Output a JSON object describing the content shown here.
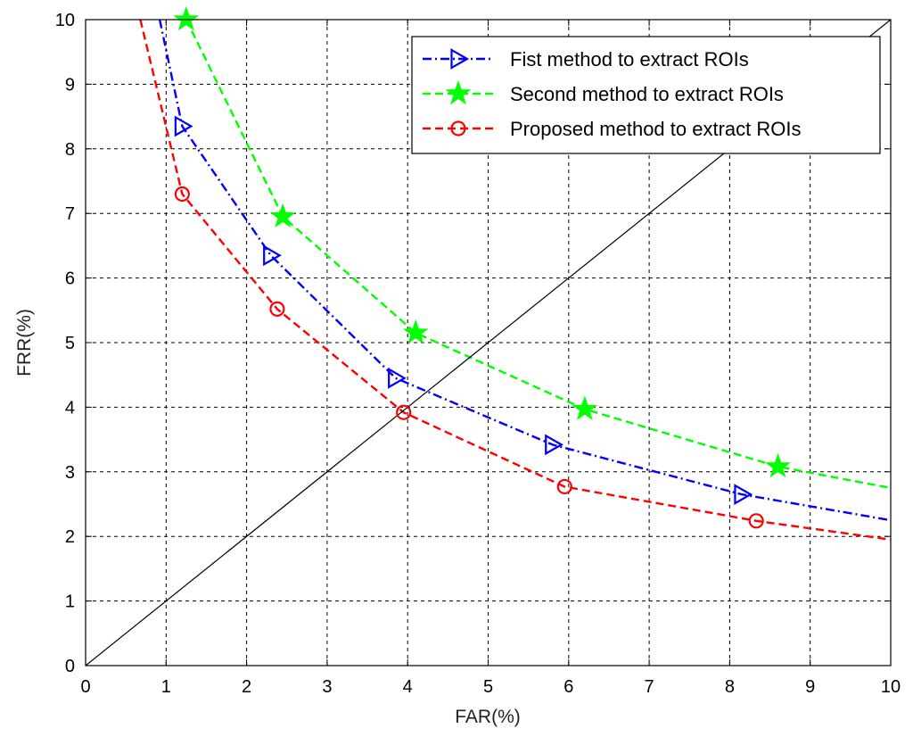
{
  "chart_data": {
    "type": "line",
    "xlabel": "FAR(%)",
    "ylabel": "FRR(%)",
    "xlim": [
      0,
      10
    ],
    "ylim": [
      0,
      10
    ],
    "xticks": [
      "0",
      "1",
      "2",
      "3",
      "4",
      "5",
      "6",
      "7",
      "8",
      "9",
      "10"
    ],
    "yticks": [
      "0",
      "1",
      "2",
      "3",
      "4",
      "5",
      "6",
      "7",
      "8",
      "9",
      "10"
    ],
    "grid": true,
    "legend_position": "top-right",
    "series": [
      {
        "name": "Fist method to extract ROIs",
        "color": "#0000ff",
        "line_style": "dash-dot",
        "marker": "triangle-right",
        "x": [
          0.92,
          1.2,
          2.3,
          3.85,
          5.8,
          8.15,
          10
        ],
        "y": [
          10,
          8.35,
          6.35,
          4.45,
          3.42,
          2.65,
          2.25
        ],
        "marker_indices": [
          1,
          2,
          3,
          4,
          5
        ]
      },
      {
        "name": "Second method to extract ROIs",
        "color": "#00ff00",
        "line_style": "dashed",
        "marker": "star",
        "x": [
          1.25,
          2.45,
          4.1,
          6.2,
          8.6,
          10
        ],
        "y": [
          10,
          6.95,
          5.15,
          3.97,
          3.08,
          2.75
        ],
        "marker_indices": [
          0,
          1,
          2,
          3,
          4
        ]
      },
      {
        "name": "Proposed method to extract ROIs",
        "color": "#ff0000",
        "line_style": "dashed",
        "marker": "circle",
        "x": [
          0.68,
          1.2,
          2.38,
          3.95,
          5.95,
          8.33,
          10
        ],
        "y": [
          10,
          7.3,
          5.52,
          3.92,
          2.77,
          2.24,
          1.95
        ],
        "marker_indices": [
          1,
          2,
          3,
          4,
          5
        ]
      },
      {
        "name": "",
        "color": "#000000",
        "line_style": "solid",
        "marker": "none",
        "x": [
          0,
          10
        ],
        "y": [
          0,
          10
        ],
        "marker_indices": []
      }
    ]
  }
}
